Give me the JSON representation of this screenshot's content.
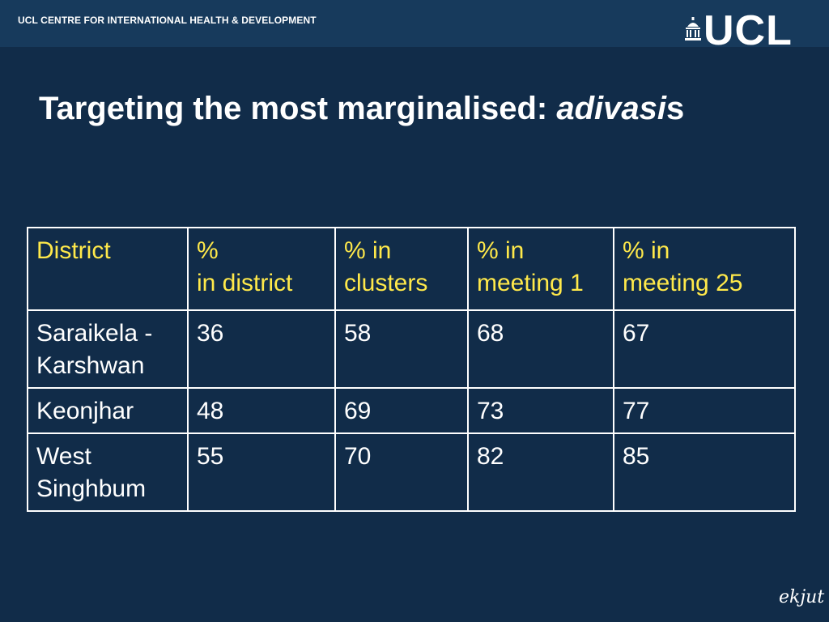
{
  "header": {
    "centre_name": "UCL CENTRE FOR INTERNATIONAL HEALTH & DEVELOPMENT",
    "logo_text": "UCL"
  },
  "title": {
    "main": "Targeting the most marginalised: ",
    "italic": "adivasi",
    "suffix": "s"
  },
  "table": {
    "headers": [
      [
        "District"
      ],
      [
        "%",
        "in district"
      ],
      [
        "% in clusters"
      ],
      [
        "% in meeting 1"
      ],
      [
        "% in",
        "meeting 25"
      ]
    ],
    "rows": [
      [
        "Saraikela - Karshwan",
        "36",
        "58",
        "68",
        "67"
      ],
      [
        "Keonjhar",
        "48",
        "69",
        "73",
        "77"
      ],
      [
        "West Singhbum",
        "55",
        "70",
        "82",
        "85"
      ]
    ]
  },
  "footer": {
    "logo_text": "ekjut"
  },
  "colors": {
    "background": "#112c49",
    "header_bar": "#173a5c",
    "header_text": "#ffe94a",
    "body_text": "#ffffff"
  }
}
